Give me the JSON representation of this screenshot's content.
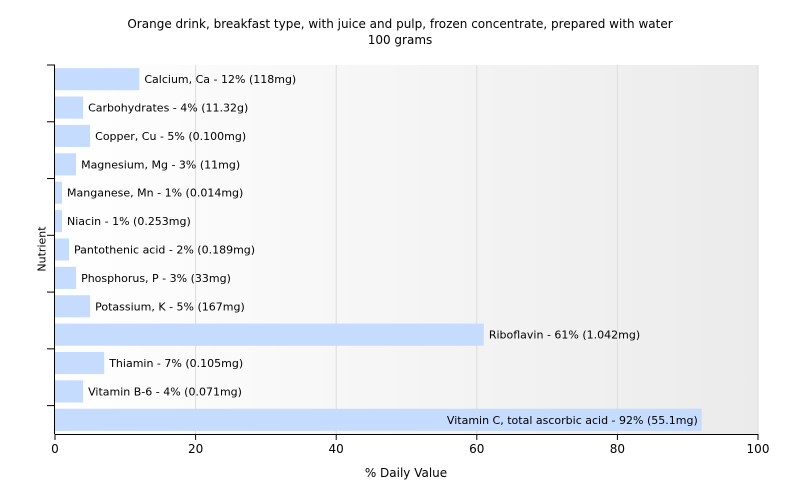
{
  "chart_data": {
    "type": "bar",
    "orientation": "horizontal",
    "title": "Orange drink, breakfast type, with juice and pulp, frozen concentrate, prepared with water",
    "subtitle": "100 grams",
    "xlabel": "% Daily Value",
    "ylabel": "Nutrient",
    "xlim": [
      0,
      100
    ],
    "xticks": [
      0,
      20,
      40,
      60,
      80,
      100
    ],
    "grid": true,
    "bar_color": "#c6dcff",
    "categories": [
      "Calcium, Ca",
      "Carbohydrates",
      "Copper, Cu",
      "Magnesium, Mg",
      "Manganese, Mn",
      "Niacin",
      "Pantothenic acid",
      "Phosphorus, P",
      "Potassium, K",
      "Riboflavin",
      "Thiamin",
      "Vitamin B-6",
      "Vitamin C, total ascorbic acid"
    ],
    "values": [
      12,
      4,
      5,
      3,
      1,
      1,
      2,
      3,
      5,
      61,
      7,
      4,
      92
    ],
    "labels": [
      "Calcium, Ca - 12% (118mg)",
      "Carbohydrates - 4% (11.32g)",
      "Copper, Cu - 5% (0.100mg)",
      "Magnesium, Mg - 3% (11mg)",
      "Manganese, Mn - 1% (0.014mg)",
      "Niacin - 1% (0.253mg)",
      "Pantothenic acid - 2% (0.189mg)",
      "Phosphorus, P - 3% (33mg)",
      "Potassium, K - 5% (167mg)",
      "Riboflavin - 61% (1.042mg)",
      "Thiamin - 7% (0.105mg)",
      "Vitamin B-6 - 4% (0.071mg)",
      "Vitamin C, total ascorbic acid - 92% (55.1mg)"
    ]
  }
}
